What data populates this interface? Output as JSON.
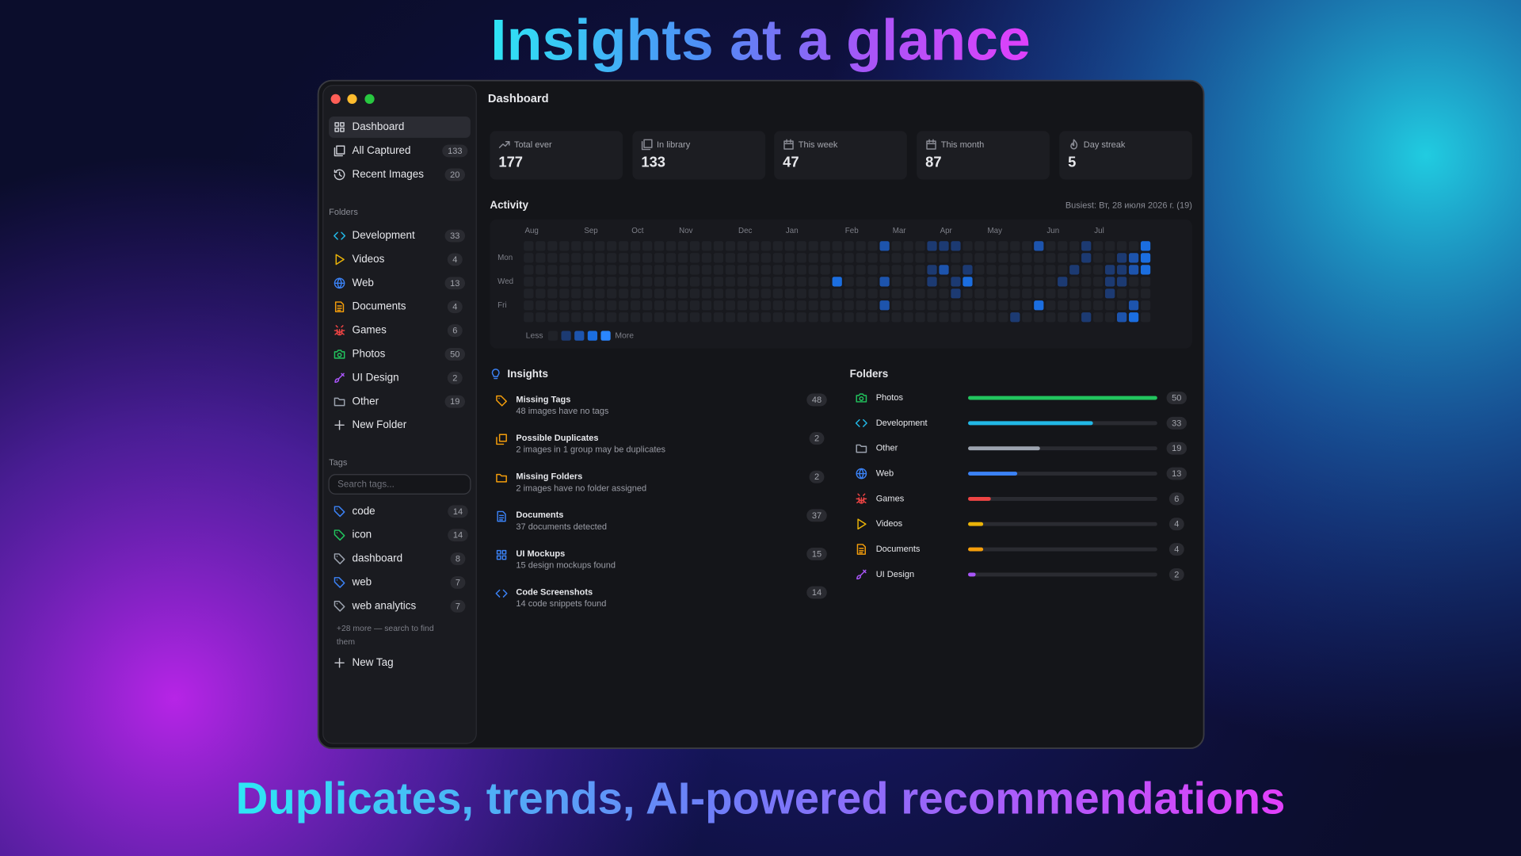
{
  "headline": "Insights at a glance",
  "tagline": "Duplicates, trends, AI-powered recommendations",
  "window": {
    "title": "Dashboard"
  },
  "sidebar": {
    "nav": [
      {
        "label": "Dashboard"
      },
      {
        "label": "All Captured",
        "count": 133
      },
      {
        "label": "Recent Images",
        "count": 20
      }
    ],
    "folders_heading": "Folders",
    "folders": [
      {
        "label": "Development",
        "count": 33,
        "color": "#22b8e6"
      },
      {
        "label": "Videos",
        "count": 4,
        "color": "#eab308"
      },
      {
        "label": "Web",
        "count": 13,
        "color": "#3b82f6"
      },
      {
        "label": "Documents",
        "count": 4,
        "color": "#f59e0b"
      },
      {
        "label": "Games",
        "count": 6,
        "color": "#ef4444"
      },
      {
        "label": "Photos",
        "count": 50,
        "color": "#22c55e"
      },
      {
        "label": "UI Design",
        "count": 2,
        "color": "#a855f7"
      },
      {
        "label": "Other",
        "count": 19,
        "color": "#9ca3af"
      }
    ],
    "new_folder": "New Folder",
    "tags_heading": "Tags",
    "search_placeholder": "Search tags...",
    "tags": [
      {
        "label": "code",
        "count": 14,
        "color": "#3b82f6"
      },
      {
        "label": "icon",
        "count": 14,
        "color": "#22c55e"
      },
      {
        "label": "dashboard",
        "count": 8,
        "color": "#9ca3af"
      },
      {
        "label": "web",
        "count": 7,
        "color": "#3b82f6"
      },
      {
        "label": "web analytics",
        "count": 7,
        "color": "#9ca3af"
      }
    ],
    "more_note": [
      "+28 more — search to find",
      "them"
    ],
    "new_tag": "New Tag"
  },
  "stats": [
    {
      "label": "Total ever",
      "value": 177
    },
    {
      "label": "In library",
      "value": 133
    },
    {
      "label": "This week",
      "value": 47
    },
    {
      "label": "This month",
      "value": 87
    },
    {
      "label": "Day streak",
      "value": 5
    }
  ],
  "activity": {
    "title": "Activity",
    "busiest": "Busiest: Вт, 28 июля 2026 г. (19)",
    "months": [
      "Aug",
      "Sep",
      "Oct",
      "Nov",
      "Dec",
      "Jan",
      "Feb",
      "Mar",
      "Apr",
      "May",
      "Jun",
      "Jul"
    ],
    "days": [
      "Mon",
      "Wed",
      "Fri"
    ],
    "legend_less": "Less",
    "legend_more": "More",
    "level_colors": [
      "#202228",
      "#1c3a72",
      "#1d54ad",
      "#1b6ee0",
      "#2a86ff"
    ],
    "grid": [
      [
        0,
        0,
        0,
        0,
        0,
        0,
        0,
        0,
        0,
        0,
        0,
        0,
        0,
        0,
        0,
        0,
        0,
        0,
        0,
        0,
        0,
        0,
        0,
        0,
        0,
        0,
        0,
        0,
        0,
        0,
        2,
        0,
        0,
        0,
        1,
        1,
        1,
        0,
        0,
        0,
        0,
        0,
        0,
        2,
        0,
        0,
        0,
        1,
        0,
        0,
        0,
        0,
        3
      ],
      [
        0,
        0,
        0,
        0,
        0,
        0,
        0,
        0,
        0,
        0,
        0,
        0,
        0,
        0,
        0,
        0,
        0,
        0,
        0,
        0,
        0,
        0,
        0,
        0,
        0,
        0,
        0,
        0,
        0,
        0,
        0,
        0,
        0,
        0,
        0,
        0,
        0,
        0,
        0,
        0,
        0,
        0,
        0,
        0,
        0,
        0,
        0,
        1,
        0,
        0,
        1,
        2,
        3
      ],
      [
        0,
        0,
        0,
        0,
        0,
        0,
        0,
        0,
        0,
        0,
        0,
        0,
        0,
        0,
        0,
        0,
        0,
        0,
        0,
        0,
        0,
        0,
        0,
        0,
        0,
        0,
        0,
        0,
        0,
        0,
        0,
        0,
        0,
        0,
        1,
        2,
        0,
        1,
        0,
        0,
        0,
        0,
        0,
        0,
        0,
        0,
        1,
        0,
        0,
        1,
        1,
        2,
        3
      ],
      [
        0,
        0,
        0,
        0,
        0,
        0,
        0,
        0,
        0,
        0,
        0,
        0,
        0,
        0,
        0,
        0,
        0,
        0,
        0,
        0,
        0,
        0,
        0,
        0,
        0,
        0,
        3,
        0,
        0,
        0,
        2,
        0,
        0,
        0,
        1,
        0,
        1,
        3,
        0,
        0,
        0,
        0,
        0,
        0,
        0,
        1,
        0,
        0,
        0,
        1,
        1,
        0,
        0
      ],
      [
        0,
        0,
        0,
        0,
        0,
        0,
        0,
        0,
        0,
        0,
        0,
        0,
        0,
        0,
        0,
        0,
        0,
        0,
        0,
        0,
        0,
        0,
        0,
        0,
        0,
        0,
        0,
        0,
        0,
        0,
        0,
        0,
        0,
        0,
        0,
        0,
        1,
        0,
        0,
        0,
        0,
        0,
        0,
        0,
        0,
        0,
        0,
        0,
        0,
        1,
        0,
        0,
        0
      ],
      [
        0,
        0,
        0,
        0,
        0,
        0,
        0,
        0,
        0,
        0,
        0,
        0,
        0,
        0,
        0,
        0,
        0,
        0,
        0,
        0,
        0,
        0,
        0,
        0,
        0,
        0,
        0,
        0,
        0,
        0,
        2,
        0,
        0,
        0,
        0,
        0,
        0,
        0,
        0,
        0,
        0,
        0,
        0,
        3,
        0,
        0,
        0,
        0,
        0,
        0,
        0,
        2,
        0
      ],
      [
        0,
        0,
        0,
        0,
        0,
        0,
        0,
        0,
        0,
        0,
        0,
        0,
        0,
        0,
        0,
        0,
        0,
        0,
        0,
        0,
        0,
        0,
        0,
        0,
        0,
        0,
        0,
        0,
        0,
        0,
        0,
        0,
        0,
        0,
        0,
        0,
        0,
        0,
        0,
        0,
        0,
        1,
        0,
        0,
        0,
        0,
        0,
        1,
        0,
        0,
        2,
        3,
        0
      ]
    ]
  },
  "insights": {
    "title": "Insights",
    "items": [
      {
        "title": "Missing Tags",
        "description": "48 images have no tags",
        "count": 48,
        "color": "#f59e0b"
      },
      {
        "title": "Possible Duplicates",
        "description": "2 images in 1 group may be duplicates",
        "count": 2,
        "color": "#f59e0b"
      },
      {
        "title": "Missing Folders",
        "description": "2 images have no folder assigned",
        "count": 2,
        "color": "#f59e0b"
      },
      {
        "title": "Documents",
        "description": "37 documents detected",
        "count": 37,
        "color": "#3b82f6"
      },
      {
        "title": "UI Mockups",
        "description": "15 design mockups found",
        "count": 15,
        "color": "#3b82f6"
      },
      {
        "title": "Code Screenshots",
        "description": "14 code snippets found",
        "count": 14,
        "color": "#3b82f6"
      }
    ]
  },
  "folder_chart": {
    "title": "Folders",
    "items": [
      {
        "name": "Photos",
        "count": 50,
        "color": "#22c55e"
      },
      {
        "name": "Development",
        "count": 33,
        "color": "#22b8e6"
      },
      {
        "name": "Other",
        "count": 19,
        "color": "#9ca3af"
      },
      {
        "name": "Web",
        "count": 13,
        "color": "#3b82f6"
      },
      {
        "name": "Games",
        "count": 6,
        "color": "#ef4444"
      },
      {
        "name": "Videos",
        "count": 4,
        "color": "#eab308"
      },
      {
        "name": "Documents",
        "count": 4,
        "color": "#f59e0b"
      },
      {
        "name": "UI Design",
        "count": 2,
        "color": "#a855f7"
      }
    ]
  }
}
